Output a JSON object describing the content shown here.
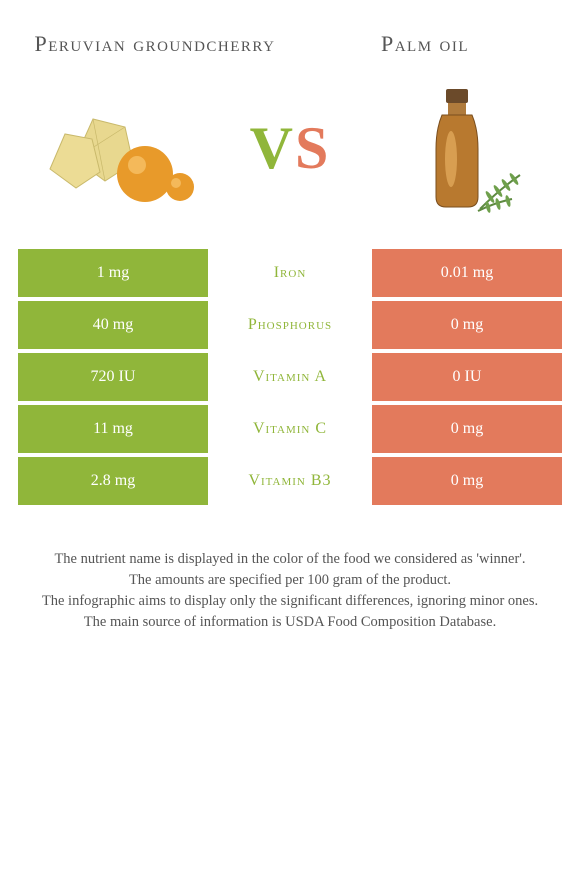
{
  "left_title": "Peruvian groundcherry",
  "right_title": "Palm oil",
  "vs_v": "V",
  "vs_s": "S",
  "colors": {
    "left": "#90b63a",
    "right": "#e37a5c",
    "text": "#555555",
    "background": "#ffffff"
  },
  "rows": [
    {
      "name": "Iron",
      "left": "1 mg",
      "right": "0.01 mg",
      "winner": "left"
    },
    {
      "name": "Phosphorus",
      "left": "40 mg",
      "right": "0 mg",
      "winner": "left"
    },
    {
      "name": "Vitamin A",
      "left": "720 IU",
      "right": "0 IU",
      "winner": "left"
    },
    {
      "name": "Vitamin C",
      "left": "11 mg",
      "right": "0 mg",
      "winner": "left"
    },
    {
      "name": "Vitamin B3",
      "left": "2.8 mg",
      "right": "0 mg",
      "winner": "left"
    }
  ],
  "footer": [
    "The nutrient name is displayed in the color of the food we considered as 'winner'.",
    "The amounts are specified per 100 gram of the product.",
    "The infographic aims to display only the significant differences, ignoring minor ones.",
    "The main source of information is USDA Food Composition Database."
  ]
}
